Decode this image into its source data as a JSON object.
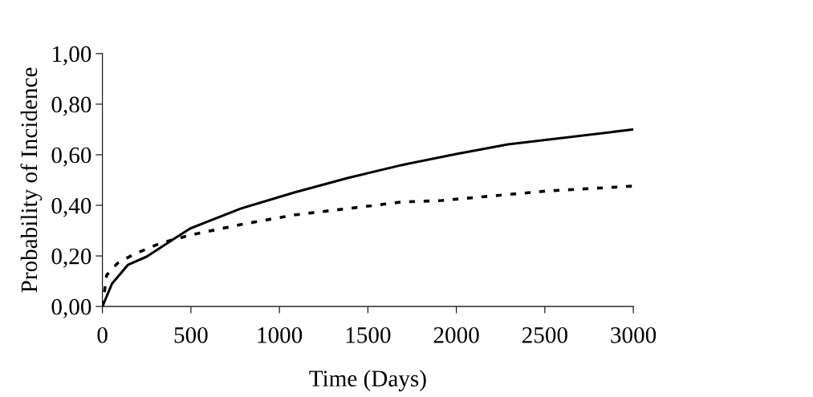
{
  "chart_data": {
    "type": "line",
    "xlabel": "Time (Days)",
    "ylabel": "Probability of Incidence",
    "xlim": [
      0,
      3000
    ],
    "xticks": [
      0,
      500,
      1000,
      1500,
      2000,
      2500,
      3000
    ],
    "ylim": [
      0,
      1
    ],
    "yticks": [
      {
        "value": 0,
        "label": "0,00"
      },
      {
        "value": 0.2,
        "label": "0,20"
      },
      {
        "value": 0.4,
        "label": "0,40"
      },
      {
        "value": 0.6,
        "label": "0,60"
      },
      {
        "value": 0.8,
        "label": "0,80"
      },
      {
        "value": 1,
        "label": "1,00"
      }
    ],
    "grid": false,
    "legend": false,
    "marker": "none",
    "series": [
      {
        "color": "#000000",
        "line_style": "solid",
        "x": [
          0,
          54,
          145,
          250,
          403,
          495,
          781,
          1084,
          1385,
          1689,
          2000,
          2292,
          3000
        ],
        "values": [
          0,
          0.09,
          0.165,
          0.197,
          0.267,
          0.308,
          0.387,
          0.451,
          0.508,
          0.559,
          0.603,
          0.641,
          0.7
        ]
      },
      {
        "color": "#000000",
        "line_style": "dotted",
        "x": [
          0,
          24,
          85,
          176,
          327,
          495,
          781,
          1084,
          1385,
          1689,
          1916,
          2520,
          3000
        ],
        "values": [
          0,
          0.124,
          0.171,
          0.206,
          0.25,
          0.282,
          0.324,
          0.362,
          0.387,
          0.413,
          0.419,
          0.457,
          0.476
        ]
      }
    ]
  }
}
